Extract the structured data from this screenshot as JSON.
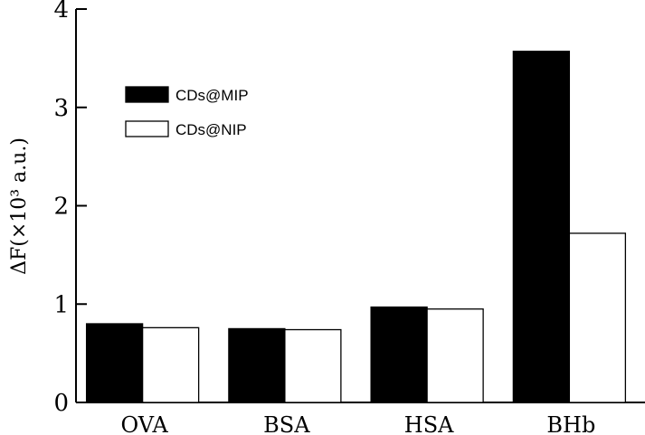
{
  "chart_data": {
    "type": "bar",
    "categories": [
      "OVA",
      "BSA",
      "HSA",
      "BHb"
    ],
    "series": [
      {
        "name": "CDs@MIP",
        "values": [
          0.8,
          0.75,
          0.97,
          3.57
        ],
        "color": "#000000"
      },
      {
        "name": "CDs@NIP",
        "values": [
          0.76,
          0.74,
          0.95,
          1.72
        ],
        "color": "#ffffff"
      }
    ],
    "xlabel": "",
    "ylabel": "ΔF(×10³ a.u.)",
    "ylim": [
      0,
      4
    ],
    "yticks": [
      "0",
      "1",
      "2",
      "3",
      "4"
    ],
    "grid": false,
    "legend_position": "top-left"
  }
}
